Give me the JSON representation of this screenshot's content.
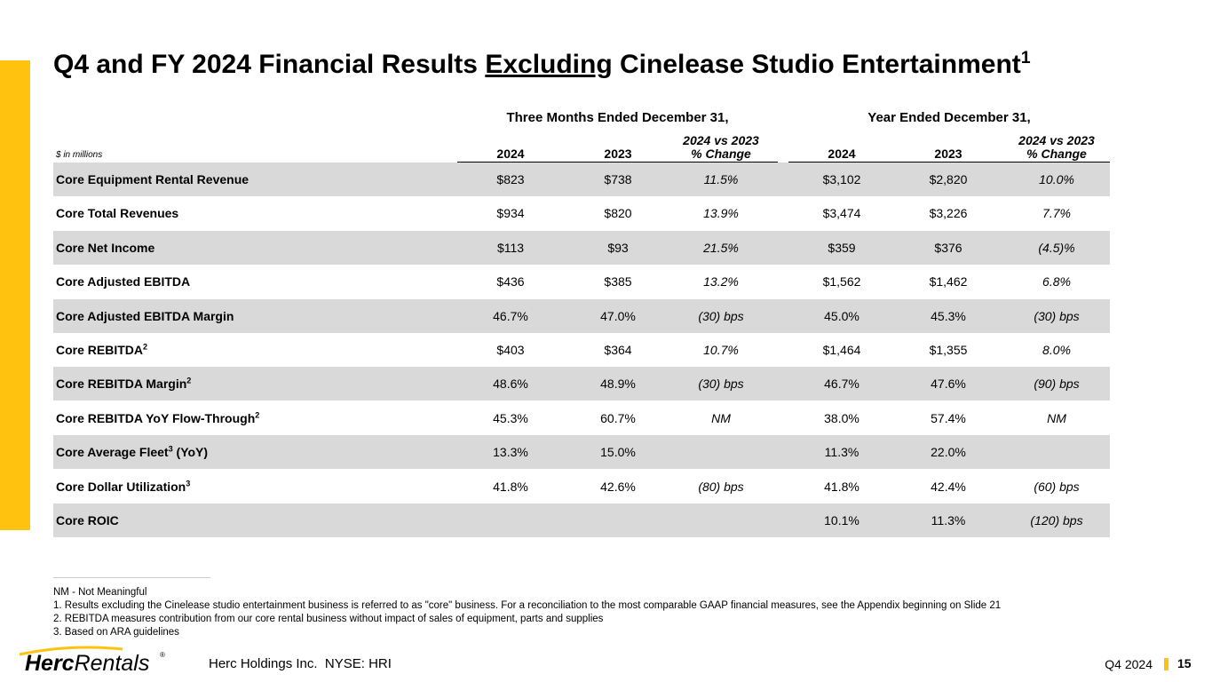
{
  "header": {
    "title": {
      "before": "Q4 and FY 2024 Financial Results ",
      "underlined": "Excluding",
      "after": " Cinelease Studio Entertainment",
      "superscript": "1"
    }
  },
  "table": {
    "unit_note": "$ in millions",
    "groups": [
      "Three Months Ended December 31,",
      "Year Ended December 31,"
    ],
    "columns": [
      [
        "2024"
      ],
      [
        "2023"
      ],
      [
        "2024 vs 2023",
        "% Change"
      ],
      [
        "2024"
      ],
      [
        "2023"
      ],
      [
        "2024 vs 2023",
        "% Change"
      ]
    ],
    "rows": [
      {
        "label": [
          {
            "text": "Core Equipment Rental Revenue"
          }
        ],
        "cells": [
          "$823",
          "$738",
          "11.5%",
          "$3,102",
          "$2,820",
          "10.0%"
        ]
      },
      {
        "label": [
          {
            "text": "Core Total Revenues"
          }
        ],
        "cells": [
          "$934",
          "$820",
          "13.9%",
          "$3,474",
          "$3,226",
          "7.7%"
        ]
      },
      {
        "label": [
          {
            "text": "Core Net Income"
          }
        ],
        "cells": [
          "$113",
          "$93",
          "21.5%",
          "$359",
          "$376",
          "(4.5)%"
        ]
      },
      {
        "label": [
          {
            "text": "Core Adjusted EBITDA"
          }
        ],
        "cells": [
          "$436",
          "$385",
          "13.2%",
          "$1,562",
          "$1,462",
          "6.8%"
        ]
      },
      {
        "label": [
          {
            "text": "Core Adjusted EBITDA Margin"
          }
        ],
        "cells": [
          "46.7%",
          "47.0%",
          "(30) bps",
          "45.0%",
          "45.3%",
          "(30) bps"
        ]
      },
      {
        "label": [
          {
            "text": "Core REBITDA"
          },
          {
            "sup": "2"
          }
        ],
        "cells": [
          "$403",
          "$364",
          "10.7%",
          "$1,464",
          "$1,355",
          "8.0%"
        ]
      },
      {
        "label": [
          {
            "text": "Core REBITDA Margin"
          },
          {
            "sup": "2"
          }
        ],
        "cells": [
          "48.6%",
          "48.9%",
          "(30) bps",
          "46.7%",
          "47.6%",
          "(90) bps"
        ]
      },
      {
        "label": [
          {
            "text": "Core REBITDA YoY Flow-Through"
          },
          {
            "sup": "2"
          }
        ],
        "cells": [
          "45.3%",
          "60.7%",
          "NM",
          "38.0%",
          "57.4%",
          "NM"
        ]
      },
      {
        "label": [
          {
            "text": "Core Average Fleet"
          },
          {
            "sup": "3"
          },
          {
            "text": " (YoY)"
          }
        ],
        "cells": [
          "13.3%",
          "15.0%",
          null,
          "11.3%",
          "22.0%",
          null
        ]
      },
      {
        "label": [
          {
            "text": "Core Dollar Utilization"
          },
          {
            "sup": "3"
          }
        ],
        "cells": [
          "41.8%",
          "42.6%",
          "(80) bps",
          "41.8%",
          "42.4%",
          "(60) bps"
        ]
      },
      {
        "label": [
          {
            "text": "Core ROIC"
          }
        ],
        "cells": [
          null,
          null,
          null,
          "10.1%",
          "11.3%",
          "(120) bps"
        ]
      }
    ]
  },
  "notes": [
    "NM - Not Meaningful",
    "1. Results excluding the Cinelease studio entertainment business is referred to as \"core\" business. For a reconciliation to the most comparable GAAP financial measures, see the Appendix beginning on Slide 21",
    "2. REBITDA measures contribution from our core rental business without impact of sales of equipment, parts and supplies",
    "3. Based on ARA guidelines"
  ],
  "footer": {
    "logo": {
      "bold": "Herc",
      "regular": "Rentals",
      "mark": "®"
    },
    "company": "Herc Holdings Inc.  NYSE: HRI",
    "period": "Q4 2024",
    "page": "15"
  }
}
